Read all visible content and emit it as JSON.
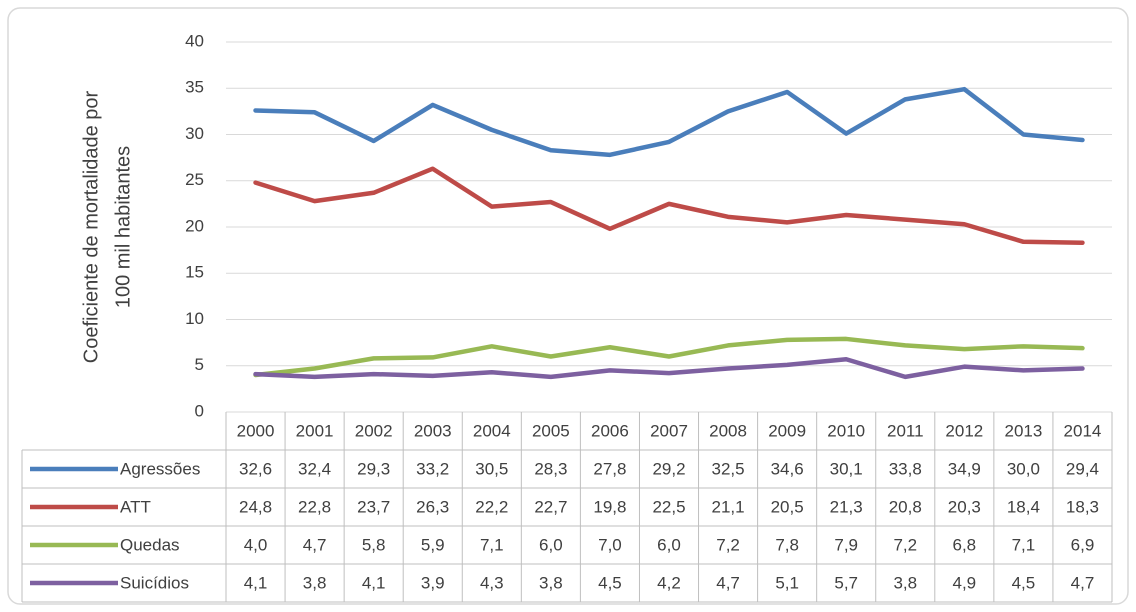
{
  "chart_data": {
    "type": "line",
    "ylabel": [
      "Coeficiente de mortalidade por",
      "100 mil habitantes"
    ],
    "categories": [
      "2000",
      "2001",
      "2002",
      "2003",
      "2004",
      "2005",
      "2006",
      "2007",
      "2008",
      "2009",
      "2010",
      "2011",
      "2012",
      "2013",
      "2014"
    ],
    "series": [
      {
        "name": "Agressões",
        "color": "#4a7ebb",
        "values": [
          32.6,
          32.4,
          29.3,
          33.2,
          30.5,
          28.3,
          27.8,
          29.2,
          32.5,
          34.6,
          30.1,
          33.8,
          34.9,
          30.0,
          29.4
        ],
        "value_labels": [
          "32,6",
          "32,4",
          "29,3",
          "33,2",
          "30,5",
          "28,3",
          "27,8",
          "29,2",
          "32,5",
          "34,6",
          "30,1",
          "33,8",
          "34,9",
          "30,0",
          "29,4"
        ]
      },
      {
        "name": "ATT",
        "color": "#be4b48",
        "values": [
          24.8,
          22.8,
          23.7,
          26.3,
          22.2,
          22.7,
          19.8,
          22.5,
          21.1,
          20.5,
          21.3,
          20.8,
          20.3,
          18.4,
          18.3
        ],
        "value_labels": [
          "24,8",
          "22,8",
          "23,7",
          "26,3",
          "22,2",
          "22,7",
          "19,8",
          "22,5",
          "21,1",
          "20,5",
          "21,3",
          "20,8",
          "20,3",
          "18,4",
          "18,3"
        ]
      },
      {
        "name": "Quedas",
        "color": "#98b954",
        "values": [
          4.0,
          4.7,
          5.8,
          5.9,
          7.1,
          6.0,
          7.0,
          6.0,
          7.2,
          7.8,
          7.9,
          7.2,
          6.8,
          7.1,
          6.9
        ],
        "value_labels": [
          "4,0",
          "4,7",
          "5,8",
          "5,9",
          "7,1",
          "6,0",
          "7,0",
          "6,0",
          "7,2",
          "7,8",
          "7,9",
          "7,2",
          "6,8",
          "7,1",
          "6,9"
        ]
      },
      {
        "name": "Suicídios",
        "color": "#7d60a0",
        "values": [
          4.1,
          3.8,
          4.1,
          3.9,
          4.3,
          3.8,
          4.5,
          4.2,
          4.7,
          5.1,
          5.7,
          3.8,
          4.9,
          4.5,
          4.7
        ],
        "value_labels": [
          "4,1",
          "3,8",
          "4,1",
          "3,9",
          "4,3",
          "3,8",
          "4,5",
          "4,2",
          "4,7",
          "5,1",
          "5,7",
          "3,8",
          "4,9",
          "4,5",
          "4,7"
        ]
      }
    ],
    "ylim": [
      0,
      40
    ],
    "yticks": [
      0,
      5,
      10,
      15,
      20,
      25,
      30,
      35,
      40
    ],
    "grid": true
  }
}
